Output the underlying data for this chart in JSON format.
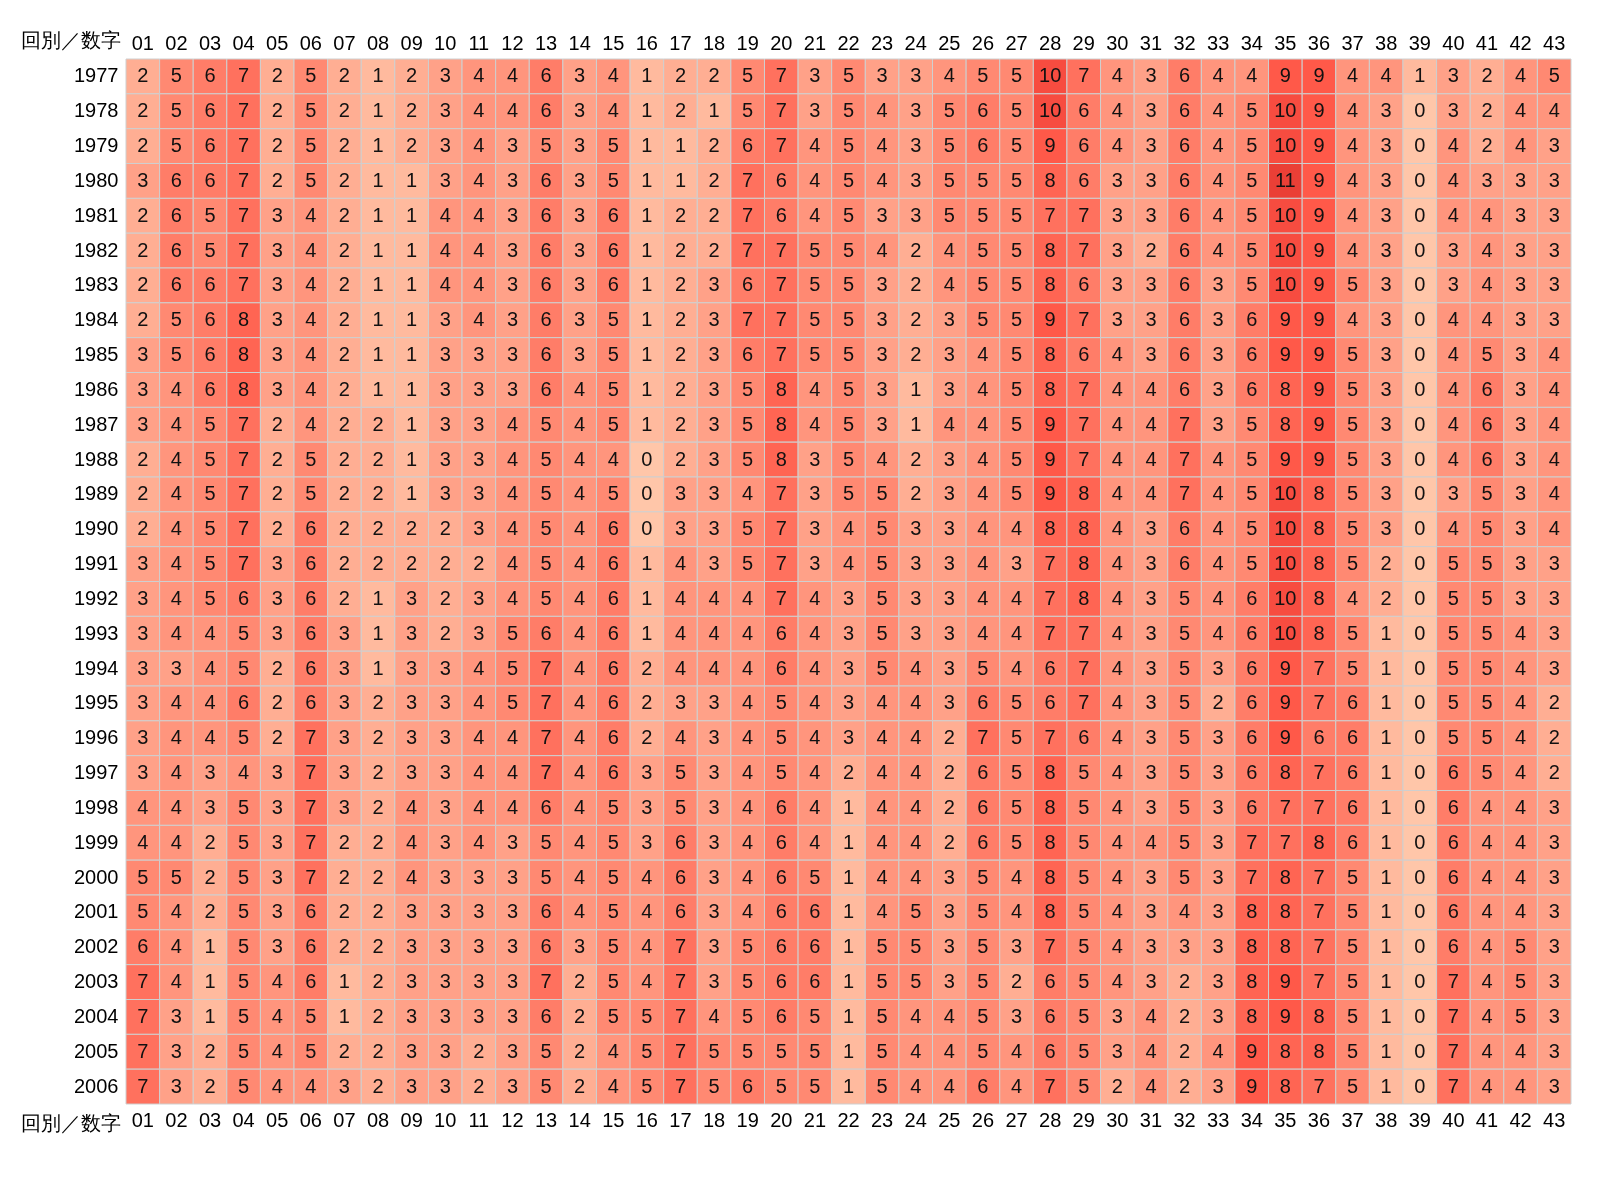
{
  "chart_data": {
    "type": "heatmap",
    "xlabel": "回別／数字",
    "data_labels": true,
    "categories": [
      "01",
      "02",
      "03",
      "04",
      "05",
      "06",
      "07",
      "08",
      "09",
      "10",
      "11",
      "12",
      "13",
      "14",
      "15",
      "16",
      "17",
      "18",
      "19",
      "20",
      "21",
      "22",
      "23",
      "24",
      "25",
      "26",
      "27",
      "28",
      "29",
      "30",
      "31",
      "32",
      "33",
      "34",
      "35",
      "36",
      "37",
      "38",
      "39",
      "40",
      "41",
      "42",
      "43"
    ],
    "y_categories": [
      "1977",
      "1978",
      "1979",
      "1980",
      "1981",
      "1982",
      "1983",
      "1984",
      "1985",
      "1986",
      "1987",
      "1988",
      "1989",
      "1990",
      "1991",
      "1992",
      "1993",
      "1994",
      "1995",
      "1996",
      "1997",
      "1998",
      "1999",
      "2000",
      "2001",
      "2002",
      "2003",
      "2004",
      "2005",
      "2006"
    ],
    "cells": [
      [
        2,
        5,
        6,
        7,
        2,
        5,
        2,
        1,
        2,
        3,
        4,
        4,
        6,
        3,
        4,
        1,
        2,
        2,
        5,
        7,
        3,
        5,
        3,
        3,
        4,
        5,
        5,
        10,
        7,
        4,
        3,
        6,
        4,
        4,
        9,
        9,
        4,
        4,
        1,
        3,
        2,
        4,
        5
      ],
      [
        2,
        5,
        6,
        7,
        2,
        5,
        2,
        1,
        2,
        3,
        4,
        4,
        6,
        3,
        4,
        1,
        2,
        1,
        5,
        7,
        3,
        5,
        4,
        3,
        5,
        6,
        5,
        10,
        6,
        4,
        3,
        6,
        4,
        5,
        10,
        9,
        4,
        3,
        0,
        3,
        2,
        4,
        4
      ],
      [
        2,
        5,
        6,
        7,
        2,
        5,
        2,
        1,
        2,
        3,
        4,
        3,
        5,
        3,
        5,
        1,
        1,
        2,
        6,
        7,
        4,
        5,
        4,
        3,
        5,
        6,
        5,
        9,
        6,
        4,
        3,
        6,
        4,
        5,
        10,
        9,
        4,
        3,
        0,
        4,
        2,
        4,
        3
      ],
      [
        3,
        6,
        6,
        7,
        2,
        5,
        2,
        1,
        1,
        3,
        4,
        3,
        6,
        3,
        5,
        1,
        1,
        2,
        7,
        6,
        4,
        5,
        4,
        3,
        5,
        5,
        5,
        8,
        6,
        3,
        3,
        6,
        4,
        5,
        11,
        9,
        4,
        3,
        0,
        4,
        3,
        3,
        3
      ],
      [
        2,
        6,
        5,
        7,
        3,
        4,
        2,
        1,
        1,
        4,
        4,
        3,
        6,
        3,
        6,
        1,
        2,
        2,
        7,
        6,
        4,
        5,
        3,
        3,
        5,
        5,
        5,
        7,
        7,
        3,
        3,
        6,
        4,
        5,
        10,
        9,
        4,
        3,
        0,
        4,
        4,
        3,
        3
      ],
      [
        2,
        6,
        5,
        7,
        3,
        4,
        2,
        1,
        1,
        4,
        4,
        3,
        6,
        3,
        6,
        1,
        2,
        2,
        7,
        7,
        5,
        5,
        4,
        2,
        4,
        5,
        5,
        8,
        7,
        3,
        2,
        6,
        4,
        5,
        10,
        9,
        4,
        3,
        0,
        3,
        4,
        3,
        3
      ],
      [
        2,
        6,
        6,
        7,
        3,
        4,
        2,
        1,
        1,
        4,
        4,
        3,
        6,
        3,
        6,
        1,
        2,
        3,
        6,
        7,
        5,
        5,
        3,
        2,
        4,
        5,
        5,
        8,
        6,
        3,
        3,
        6,
        3,
        5,
        10,
        9,
        5,
        3,
        0,
        3,
        4,
        3,
        3
      ],
      [
        2,
        5,
        6,
        8,
        3,
        4,
        2,
        1,
        1,
        3,
        4,
        3,
        6,
        3,
        5,
        1,
        2,
        3,
        7,
        7,
        5,
        5,
        3,
        2,
        3,
        5,
        5,
        9,
        7,
        3,
        3,
        6,
        3,
        6,
        9,
        9,
        4,
        3,
        0,
        4,
        4,
        3,
        3
      ],
      [
        3,
        5,
        6,
        8,
        3,
        4,
        2,
        1,
        1,
        3,
        3,
        3,
        6,
        3,
        5,
        1,
        2,
        3,
        6,
        7,
        5,
        5,
        3,
        2,
        3,
        4,
        5,
        8,
        6,
        4,
        3,
        6,
        3,
        6,
        9,
        9,
        5,
        3,
        0,
        4,
        5,
        3,
        4
      ],
      [
        3,
        4,
        6,
        8,
        3,
        4,
        2,
        1,
        1,
        3,
        3,
        3,
        6,
        4,
        5,
        1,
        2,
        3,
        5,
        8,
        4,
        5,
        3,
        1,
        3,
        4,
        5,
        8,
        7,
        4,
        4,
        6,
        3,
        6,
        8,
        9,
        5,
        3,
        0,
        4,
        6,
        3,
        4
      ],
      [
        3,
        4,
        5,
        7,
        2,
        4,
        2,
        2,
        1,
        3,
        3,
        4,
        5,
        4,
        5,
        1,
        2,
        3,
        5,
        8,
        4,
        5,
        3,
        1,
        4,
        4,
        5,
        9,
        7,
        4,
        4,
        7,
        3,
        5,
        8,
        9,
        5,
        3,
        0,
        4,
        6,
        3,
        4
      ],
      [
        2,
        4,
        5,
        7,
        2,
        5,
        2,
        2,
        1,
        3,
        3,
        4,
        5,
        4,
        4,
        0,
        2,
        3,
        5,
        8,
        3,
        5,
        4,
        2,
        3,
        4,
        5,
        9,
        7,
        4,
        4,
        7,
        4,
        5,
        9,
        9,
        5,
        3,
        0,
        4,
        6,
        3,
        4
      ],
      [
        2,
        4,
        5,
        7,
        2,
        5,
        2,
        2,
        1,
        3,
        3,
        4,
        5,
        4,
        5,
        0,
        3,
        3,
        4,
        7,
        3,
        5,
        5,
        2,
        3,
        4,
        5,
        9,
        8,
        4,
        4,
        7,
        4,
        5,
        10,
        8,
        5,
        3,
        0,
        3,
        5,
        3,
        4
      ],
      [
        2,
        4,
        5,
        7,
        2,
        6,
        2,
        2,
        2,
        2,
        3,
        4,
        5,
        4,
        6,
        0,
        3,
        3,
        5,
        7,
        3,
        4,
        5,
        3,
        3,
        4,
        4,
        8,
        8,
        4,
        3,
        6,
        4,
        5,
        10,
        8,
        5,
        3,
        0,
        4,
        5,
        3,
        4
      ],
      [
        3,
        4,
        5,
        7,
        3,
        6,
        2,
        2,
        2,
        2,
        2,
        4,
        5,
        4,
        6,
        1,
        4,
        3,
        5,
        7,
        3,
        4,
        5,
        3,
        3,
        4,
        3,
        7,
        8,
        4,
        3,
        6,
        4,
        5,
        10,
        8,
        5,
        2,
        0,
        5,
        5,
        3,
        3
      ],
      [
        3,
        4,
        5,
        6,
        3,
        6,
        2,
        1,
        3,
        2,
        3,
        4,
        5,
        4,
        6,
        1,
        4,
        4,
        4,
        7,
        4,
        3,
        5,
        3,
        3,
        4,
        4,
        7,
        8,
        4,
        3,
        5,
        4,
        6,
        10,
        8,
        4,
        2,
        0,
        5,
        5,
        3,
        3
      ],
      [
        3,
        4,
        4,
        5,
        3,
        6,
        3,
        1,
        3,
        2,
        3,
        5,
        6,
        4,
        6,
        1,
        4,
        4,
        4,
        6,
        4,
        3,
        5,
        3,
        3,
        4,
        4,
        7,
        7,
        4,
        3,
        5,
        4,
        6,
        10,
        8,
        5,
        1,
        0,
        5,
        5,
        4,
        3
      ],
      [
        3,
        3,
        4,
        5,
        2,
        6,
        3,
        1,
        3,
        3,
        4,
        5,
        7,
        4,
        6,
        2,
        4,
        4,
        4,
        6,
        4,
        3,
        5,
        4,
        3,
        5,
        4,
        6,
        7,
        4,
        3,
        5,
        3,
        6,
        9,
        7,
        5,
        1,
        0,
        5,
        5,
        4,
        3
      ],
      [
        3,
        4,
        4,
        6,
        2,
        6,
        3,
        2,
        3,
        3,
        4,
        5,
        7,
        4,
        6,
        2,
        3,
        3,
        4,
        5,
        4,
        3,
        4,
        4,
        3,
        6,
        5,
        6,
        7,
        4,
        3,
        5,
        2,
        6,
        9,
        7,
        6,
        1,
        0,
        5,
        5,
        4,
        2
      ],
      [
        3,
        4,
        4,
        5,
        2,
        7,
        3,
        2,
        3,
        3,
        4,
        4,
        7,
        4,
        6,
        2,
        4,
        3,
        4,
        5,
        4,
        3,
        4,
        4,
        2,
        7,
        5,
        7,
        6,
        4,
        3,
        5,
        3,
        6,
        9,
        6,
        6,
        1,
        0,
        5,
        5,
        4,
        2
      ],
      [
        3,
        4,
        3,
        4,
        3,
        7,
        3,
        2,
        3,
        3,
        4,
        4,
        7,
        4,
        6,
        3,
        5,
        3,
        4,
        5,
        4,
        2,
        4,
        4,
        2,
        6,
        5,
        8,
        5,
        4,
        3,
        5,
        3,
        6,
        8,
        7,
        6,
        1,
        0,
        6,
        5,
        4,
        2
      ],
      [
        4,
        4,
        3,
        5,
        3,
        7,
        3,
        2,
        4,
        3,
        4,
        4,
        6,
        4,
        5,
        3,
        5,
        3,
        4,
        6,
        4,
        1,
        4,
        4,
        2,
        6,
        5,
        8,
        5,
        4,
        3,
        5,
        3,
        6,
        7,
        7,
        6,
        1,
        0,
        6,
        4,
        4,
        3
      ],
      [
        4,
        4,
        2,
        5,
        3,
        7,
        2,
        2,
        4,
        3,
        4,
        3,
        5,
        4,
        5,
        3,
        6,
        3,
        4,
        6,
        4,
        1,
        4,
        4,
        2,
        6,
        5,
        8,
        5,
        4,
        4,
        5,
        3,
        7,
        7,
        8,
        6,
        1,
        0,
        6,
        4,
        4,
        3
      ],
      [
        5,
        5,
        2,
        5,
        3,
        7,
        2,
        2,
        4,
        3,
        3,
        3,
        5,
        4,
        5,
        4,
        6,
        3,
        4,
        6,
        5,
        1,
        4,
        4,
        3,
        5,
        4,
        8,
        5,
        4,
        3,
        5,
        3,
        7,
        8,
        7,
        5,
        1,
        0,
        6,
        4,
        4,
        3
      ],
      [
        5,
        4,
        2,
        5,
        3,
        6,
        2,
        2,
        3,
        3,
        3,
        3,
        6,
        4,
        5,
        4,
        6,
        3,
        4,
        6,
        6,
        1,
        4,
        5,
        3,
        5,
        4,
        8,
        5,
        4,
        3,
        4,
        3,
        8,
        8,
        7,
        5,
        1,
        0,
        6,
        4,
        4,
        3
      ],
      [
        6,
        4,
        1,
        5,
        3,
        6,
        2,
        2,
        3,
        3,
        3,
        3,
        6,
        3,
        5,
        4,
        7,
        3,
        5,
        6,
        6,
        1,
        5,
        5,
        3,
        5,
        3,
        7,
        5,
        4,
        3,
        3,
        3,
        8,
        8,
        7,
        5,
        1,
        0,
        6,
        4,
        5,
        3
      ],
      [
        7,
        4,
        1,
        5,
        4,
        6,
        1,
        2,
        3,
        3,
        3,
        3,
        7,
        2,
        5,
        4,
        7,
        3,
        5,
        6,
        6,
        1,
        5,
        5,
        3,
        5,
        2,
        6,
        5,
        4,
        3,
        2,
        3,
        8,
        9,
        7,
        5,
        1,
        0,
        7,
        4,
        5,
        3
      ],
      [
        7,
        3,
        1,
        5,
        4,
        5,
        1,
        2,
        3,
        3,
        3,
        3,
        6,
        2,
        5,
        5,
        7,
        4,
        5,
        6,
        5,
        1,
        5,
        4,
        4,
        5,
        3,
        6,
        5,
        3,
        4,
        2,
        3,
        8,
        9,
        8,
        5,
        1,
        0,
        7,
        4,
        5,
        3
      ],
      [
        7,
        3,
        2,
        5,
        4,
        5,
        2,
        2,
        3,
        3,
        2,
        3,
        5,
        2,
        4,
        5,
        7,
        5,
        5,
        5,
        5,
        1,
        5,
        4,
        4,
        5,
        4,
        6,
        5,
        3,
        4,
        2,
        4,
        9,
        8,
        8,
        5,
        1,
        0,
        7,
        4,
        4,
        3
      ],
      [
        7,
        3,
        2,
        5,
        4,
        4,
        3,
        2,
        3,
        3,
        2,
        3,
        5,
        2,
        4,
        5,
        7,
        5,
        6,
        5,
        5,
        1,
        5,
        4,
        4,
        6,
        4,
        7,
        5,
        2,
        4,
        2,
        3,
        9,
        8,
        7,
        5,
        1,
        0,
        7,
        4,
        4,
        3
      ]
    ]
  }
}
